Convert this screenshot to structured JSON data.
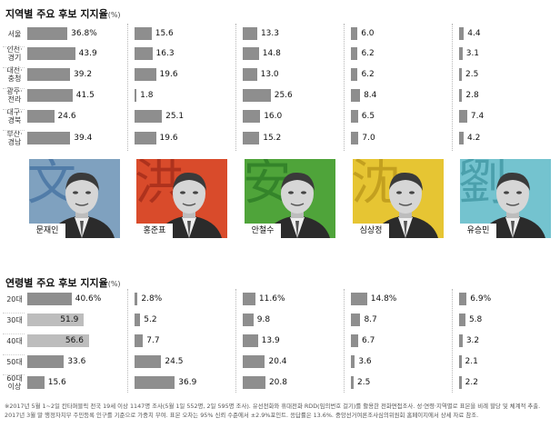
{
  "region_title": "지역별 주요 후보 지지율",
  "age_title": "연령별 주요 후보 지지율",
  "unit": "(%)",
  "region_labels": [
    "서울",
    "인천·\n경기",
    "대전·\n충청",
    "광주·\n전라",
    "대구·\n경북",
    "부산·\n경남"
  ],
  "age_labels": [
    "20대",
    "30대",
    "40대",
    "50대",
    "60대\n이상"
  ],
  "candidates": [
    {
      "name": "문재인",
      "glyph": "文",
      "bg": "#7fa1bf",
      "glyph_color": "#2c5f97"
    },
    {
      "name": "홍준표",
      "glyph": "洪",
      "bg": "#d94b2b",
      "glyph_color": "#8c1f12"
    },
    {
      "name": "안철수",
      "glyph": "安",
      "bg": "#4fa43a",
      "glyph_color": "#1f6a1d"
    },
    {
      "name": "심상정",
      "glyph": "沈",
      "bg": "#e6c533",
      "glyph_color": "#a88210"
    },
    {
      "name": "유승민",
      "glyph": "劉",
      "bg": "#74c3cf",
      "glyph_color": "#2a8591"
    }
  ],
  "colors": {
    "bar": "#8e8e8e",
    "highlight_bar": "#bdbdbd"
  },
  "chart_data": [
    {
      "type": "bar",
      "title": "지역별 주요 후보 지지율",
      "unit": "%",
      "categories": [
        "서울",
        "인천·경기",
        "대전·충청",
        "광주·전라",
        "대구·경북",
        "부산·경남"
      ],
      "series": [
        {
          "name": "문재인",
          "values": [
            36.8,
            43.9,
            39.2,
            41.5,
            24.6,
            39.4
          ]
        },
        {
          "name": "홍준표",
          "values": [
            15.6,
            16.3,
            19.6,
            1.8,
            25.1,
            19.6
          ]
        },
        {
          "name": "안철수",
          "values": [
            13.3,
            14.8,
            13.0,
            25.6,
            16.0,
            15.2
          ]
        },
        {
          "name": "심상정",
          "values": [
            6.0,
            6.2,
            6.2,
            8.4,
            6.5,
            7.0
          ]
        },
        {
          "name": "유승민",
          "values": [
            4.4,
            3.1,
            2.5,
            2.8,
            7.4,
            4.2
          ]
        }
      ]
    },
    {
      "type": "bar",
      "title": "연령별 주요 후보 지지율",
      "unit": "%",
      "categories": [
        "20대",
        "30대",
        "40대",
        "50대",
        "60대 이상"
      ],
      "series": [
        {
          "name": "문재인",
          "values": [
            40.6,
            51.9,
            56.6,
            33.6,
            15.6
          ]
        },
        {
          "name": "홍준표",
          "values": [
            2.8,
            5.2,
            7.7,
            24.5,
            36.9
          ]
        },
        {
          "name": "안철수",
          "values": [
            11.6,
            9.8,
            13.9,
            20.4,
            20.8
          ]
        },
        {
          "name": "심상정",
          "values": [
            14.8,
            8.7,
            6.7,
            3.6,
            2.5
          ]
        },
        {
          "name": "유승민",
          "values": [
            6.9,
            5.8,
            3.2,
            2.1,
            2.2
          ]
        }
      ]
    }
  ],
  "footnote": "※2017년 5월 1~2일 칸타퍼블릭 전국 19세 이상 1147명 조사(5월 1일 552명, 2일 595명 조사). 유선전화와 휴대전화 RDD(임의번호 걸기)를 활용한 전화면접조사. 성·연령·지역별로 표본을 비례 할당 및 체계적 추출. 2017년 3월 말 행정자치부 주민등록 인구를 기준으로 가중치 부여. 표본 오차는 95% 신뢰 수준에서 ±2.9%포인트. 응답률은 13.6%. 중앙선거여론조사심의위원회 홈페이지에서 상세 자료 참조."
}
